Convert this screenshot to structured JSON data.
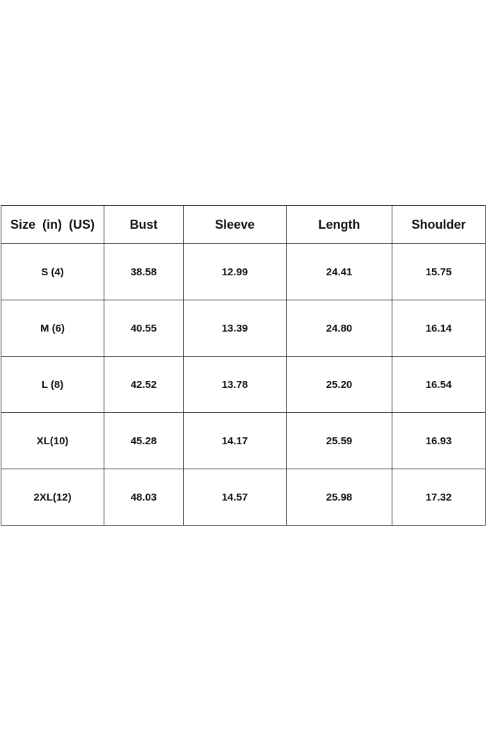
{
  "size_chart": {
    "headers": [
      "Size  (in)  (US)",
      "Bust",
      "Sleeve",
      "Length",
      "Shoulder"
    ],
    "rows": [
      [
        "S (4)",
        "38.58",
        "12.99",
        "24.41",
        "15.75"
      ],
      [
        "M (6)",
        "40.55",
        "13.39",
        "24.80",
        "16.14"
      ],
      [
        "L (8)",
        "42.52",
        "13.78",
        "25.20",
        "16.54"
      ],
      [
        "XL(10)",
        "45.28",
        "14.17",
        "25.59",
        "16.93"
      ],
      [
        "2XL(12)",
        "48.03",
        "14.57",
        "25.98",
        "17.32"
      ]
    ]
  }
}
